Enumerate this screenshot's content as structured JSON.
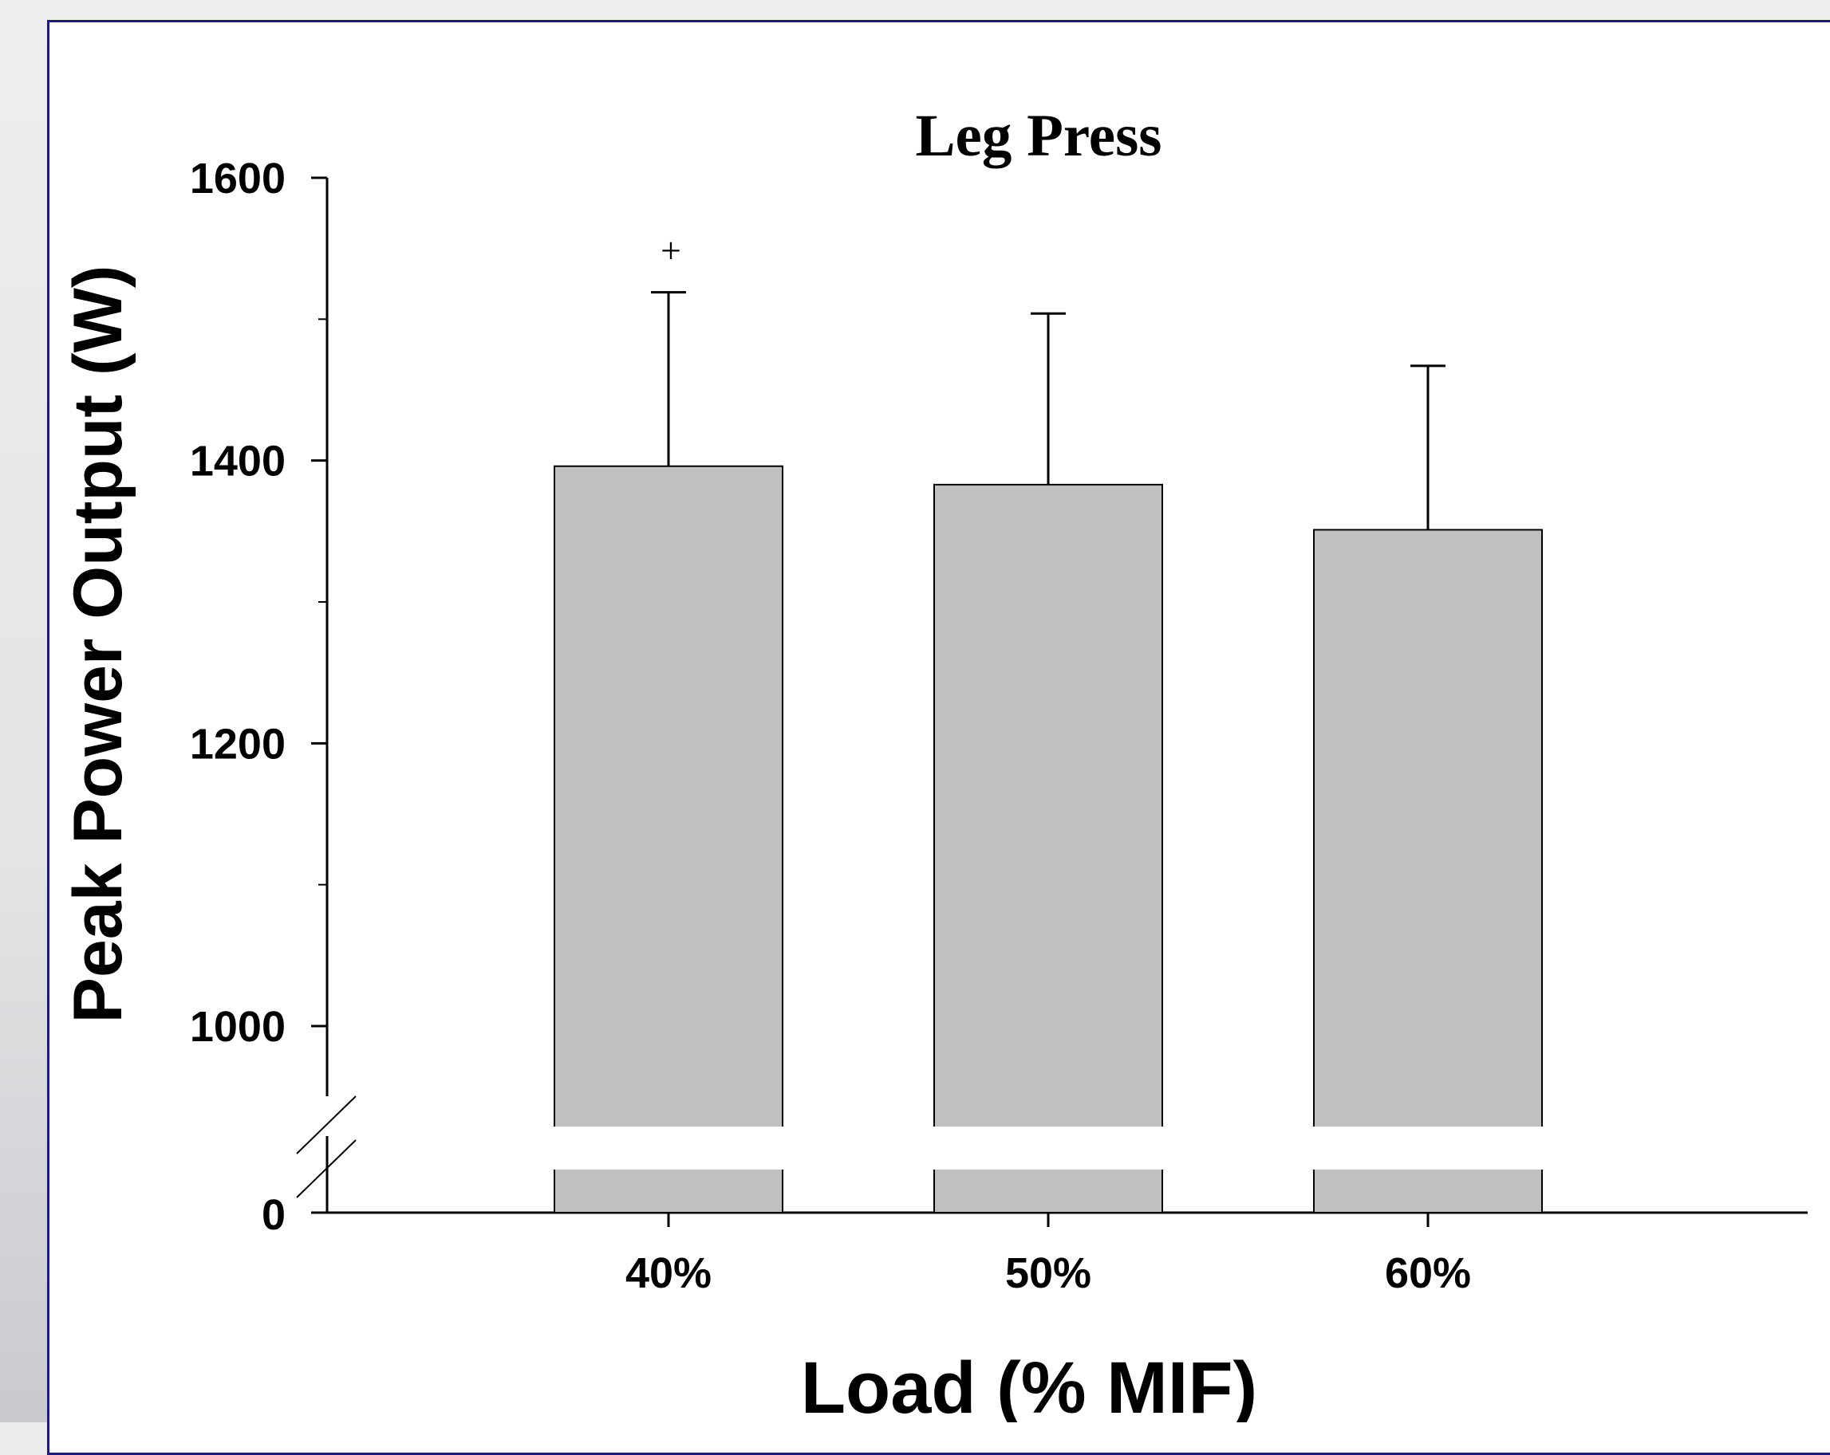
{
  "chart_data": {
    "type": "bar",
    "title": "Leg Press",
    "xlabel": "Load (% MIF)",
    "ylabel": "Peak Power Output (W)",
    "categories": [
      "40%",
      "50%",
      "60%"
    ],
    "values": [
      1396,
      1383,
      1351
    ],
    "error_upper": [
      1519,
      1504,
      1467
    ],
    "ylim": [
      900,
      1600
    ],
    "y_axis_break": true,
    "yticks": [
      0,
      1000,
      1200,
      1400,
      1600
    ],
    "annotations": [
      {
        "category": "40%",
        "text": "+"
      }
    ],
    "bar_color": "#c0c0c0",
    "grid": false,
    "legend": "none"
  }
}
